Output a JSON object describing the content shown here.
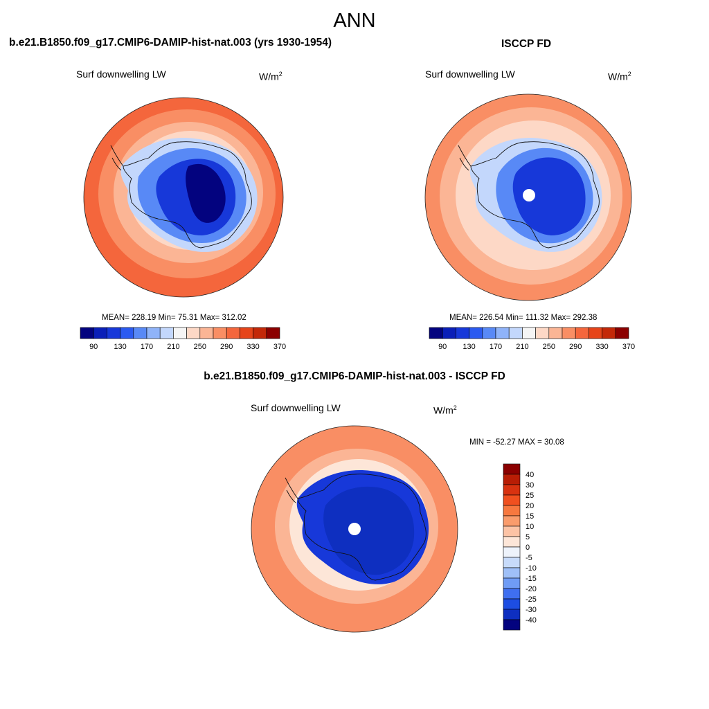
{
  "page": {
    "title": "ANN"
  },
  "panels": [
    {
      "id": "model",
      "title": "b.e21.B1850.f09_g17.CMIP6-DAMIP-hist-nat.003 (yrs 1930-1954)",
      "variable_label": "Surf downwelling LW",
      "units": "W/m",
      "units_exponent": "2",
      "stats": {
        "mean": "228.19",
        "min": "75.31",
        "max": "312.02",
        "text": "MEAN= 228.19  Min=  75.31  Max= 312.02"
      },
      "colorbar": {
        "colors": [
          "#03037f",
          "#0a1fb8",
          "#1738d9",
          "#2b5af0",
          "#5889f6",
          "#8fb3f9",
          "#c3d7fc",
          "#f5f5f5",
          "#fdd8c6",
          "#fbb595",
          "#f98e64",
          "#f4663c",
          "#e64419",
          "#c32808",
          "#8b0000"
        ],
        "tick_labels": [
          "90",
          "130",
          "170",
          "210",
          "250",
          "290",
          "330",
          "370"
        ]
      }
    },
    {
      "id": "obs",
      "title": "ISCCP FD",
      "variable_label": "Surf downwelling LW",
      "units": "W/m",
      "units_exponent": "2",
      "stats": {
        "mean": "226.54",
        "min": "111.32",
        "max": "292.38",
        "text": "MEAN= 226.54  Min= 111.32  Max= 292.38"
      },
      "colorbar": {
        "colors": [
          "#03037f",
          "#0a1fb8",
          "#1738d9",
          "#2b5af0",
          "#5889f6",
          "#8fb3f9",
          "#c3d7fc",
          "#f5f5f5",
          "#fdd8c6",
          "#fbb595",
          "#f98e64",
          "#f4663c",
          "#e64419",
          "#c32808",
          "#8b0000"
        ],
        "tick_labels": [
          "90",
          "130",
          "170",
          "210",
          "250",
          "290",
          "330",
          "370"
        ]
      }
    },
    {
      "id": "diff",
      "title": "b.e21.B1850.f09_g17.CMIP6-DAMIP-hist-nat.003 - ISCCP FD",
      "variable_label": "Surf downwelling LW",
      "units": "W/m",
      "units_exponent": "2",
      "stats": {
        "min": "-52.27",
        "max": "30.08",
        "text": "MIN = -52.27 MAX =  30.08"
      },
      "colorbar": {
        "colors": [
          "#8b0000",
          "#b81d05",
          "#d83210",
          "#f0501f",
          "#f7783f",
          "#fa9c6c",
          "#fcc3a5",
          "#fde6d8",
          "#eef3fb",
          "#c7dbfa",
          "#9fc0f8",
          "#6f9cf5",
          "#3f6ff0",
          "#1d4de2",
          "#0e2fc0",
          "#03037f"
        ],
        "tick_labels": [
          "40",
          "30",
          "25",
          "20",
          "15",
          "10",
          "5",
          "0",
          "-5",
          "-10",
          "-15",
          "-20",
          "-25",
          "-30",
          "-40"
        ]
      }
    }
  ],
  "map_fill_colors": {
    "ocean_warm": "#f4663c",
    "ocean_mid": "#f98e64",
    "ocean_light": "#fbb595",
    "ice_edge": "#fdd8c6",
    "coast_light": "#c3d7fc",
    "interior_mid": "#5889f6",
    "interior_dark": "#1738d9",
    "interior_deep": "#03037f",
    "diff_ocean": "#f98e64",
    "diff_ocean_light": "#fbb595",
    "diff_edge": "#fde6d8",
    "diff_land": "#1738d9",
    "diff_land_deep": "#0e2fc0"
  }
}
